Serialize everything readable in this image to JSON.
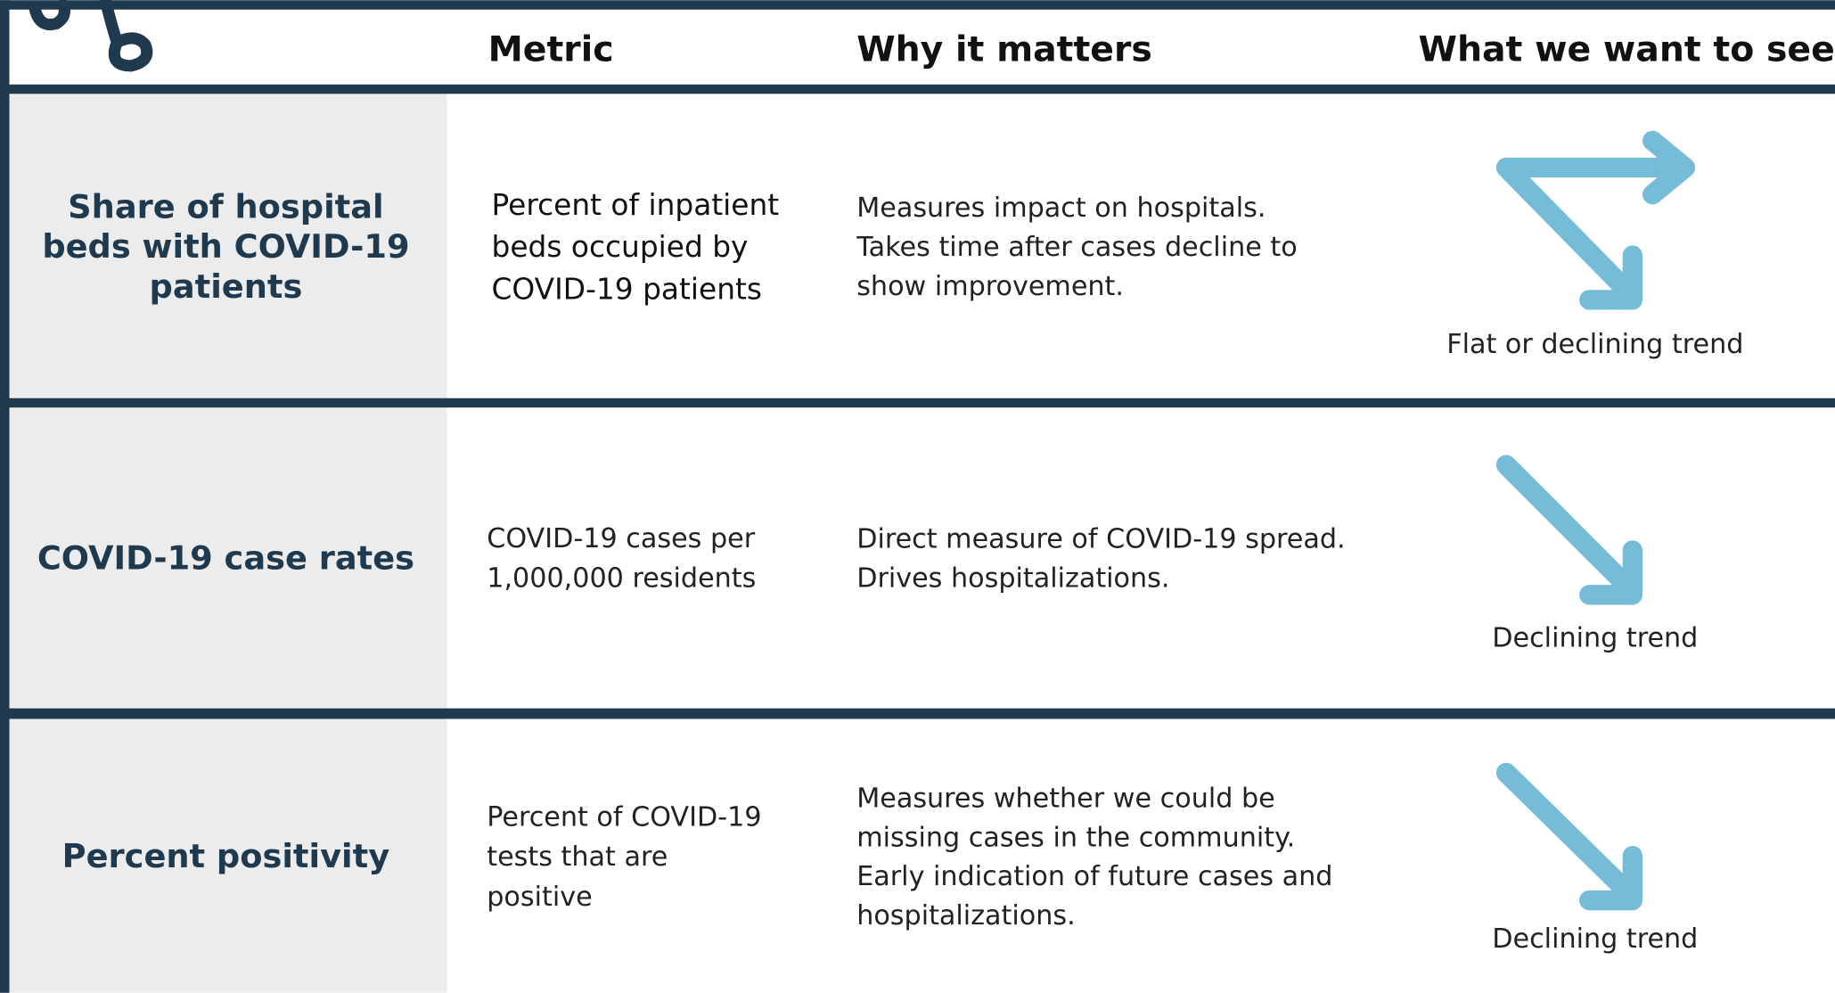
{
  "header": {
    "metric": "Metric",
    "why": "Why it matters",
    "want": "What we want to see"
  },
  "rows": [
    {
      "label": [
        "Share of hospital",
        "beds with COVID-19",
        "patients"
      ],
      "metric": [
        "Percent of inpatient",
        "beds occupied by",
        "COVID-19 patients"
      ],
      "why": [
        "Measures impact on hospitals.",
        "Takes time after cases decline to",
        "show improvement."
      ],
      "want": "Flat or declining trend"
    },
    {
      "label": [
        "COVID-19 case rates"
      ],
      "metric": [
        "COVID-19 cases per",
        "1,000,000 residents"
      ],
      "why": [
        "Direct measure of COVID-19 spread.",
        "Drives hospitalizations."
      ],
      "want": "Declining trend"
    },
    {
      "label": [
        "Percent positivity"
      ],
      "metric": [
        "Percent of COVID-19",
        "tests that are",
        "positive"
      ],
      "why": [
        "Measures whether we could be",
        "missing cases in the community.",
        "Early indication of future cases and",
        "hospitalizations."
      ],
      "want": "Declining trend"
    }
  ]
}
